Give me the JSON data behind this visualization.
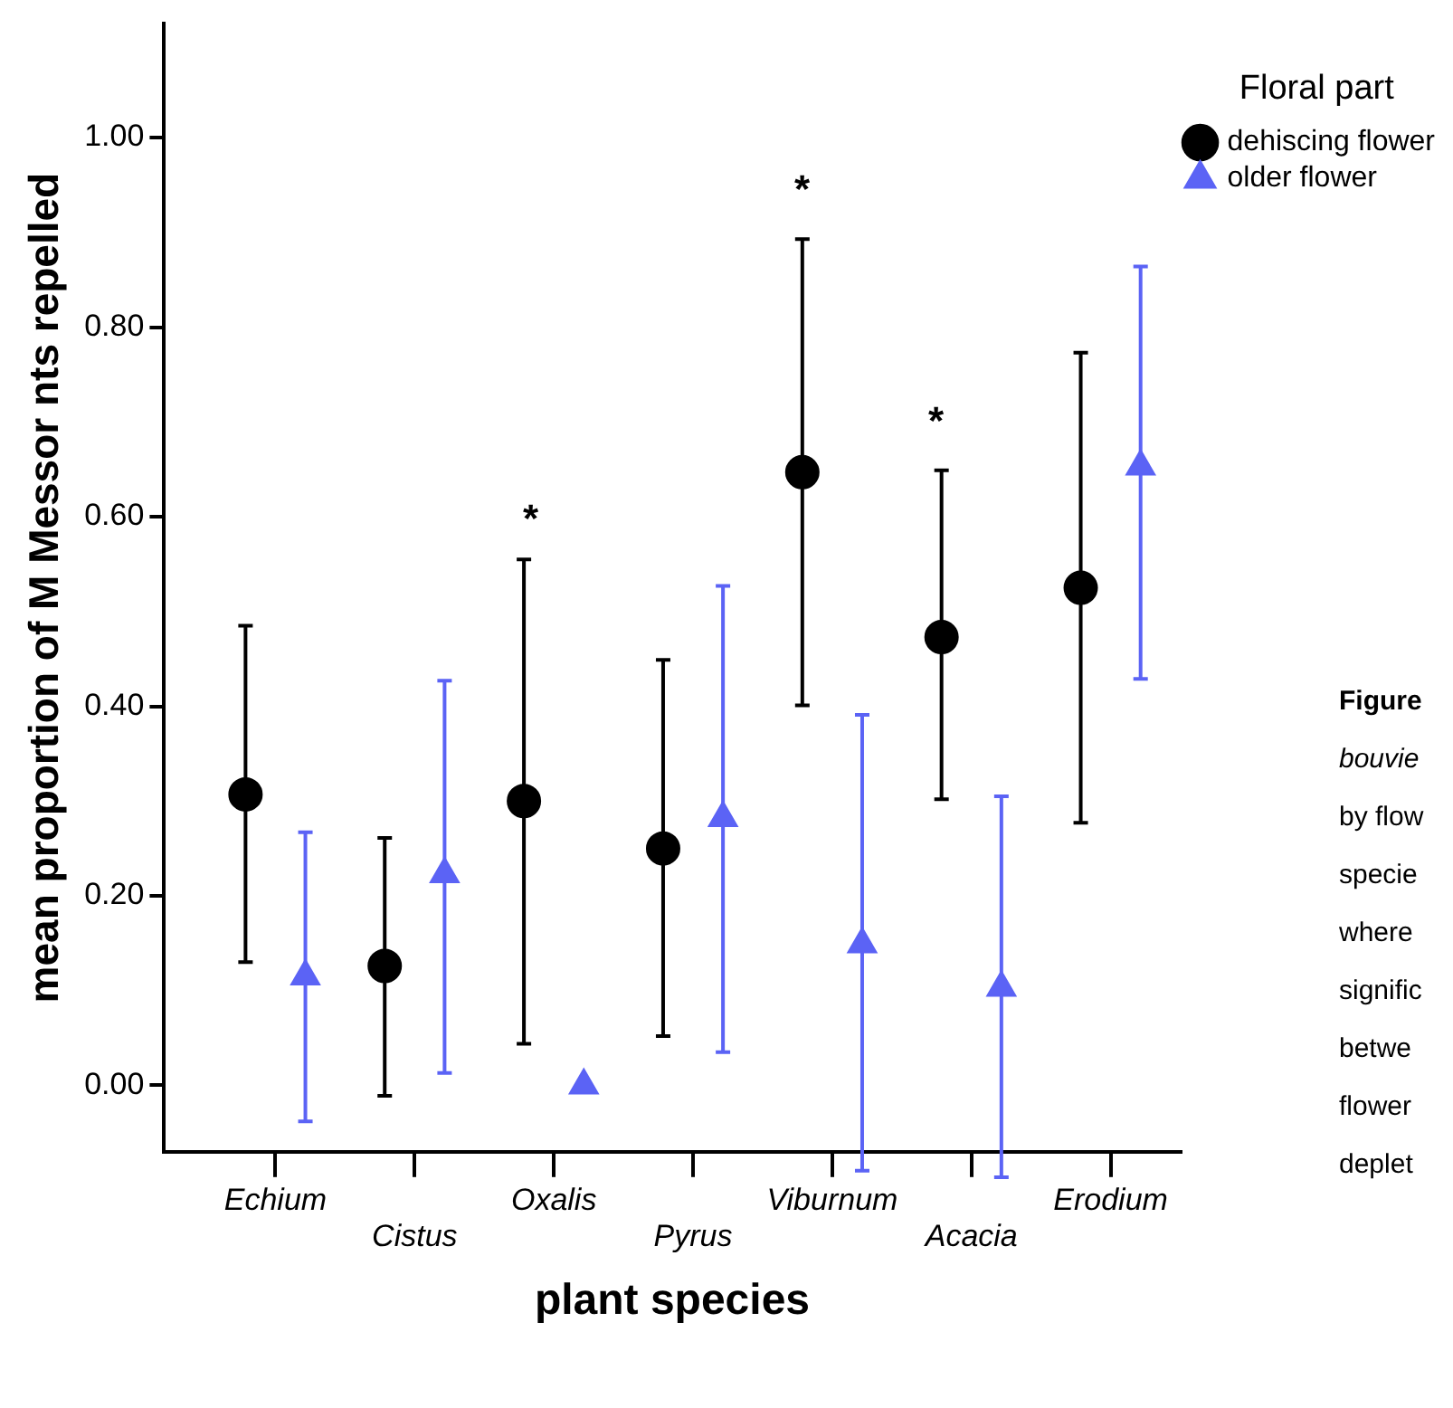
{
  "chart_data": {
    "type": "scatter",
    "xlabel": "plant species",
    "ylabel": "mean proportion of M Messor nts repelled",
    "legend_title": "Floral part",
    "legend": "top right",
    "grid": false,
    "categories": [
      "Echium",
      "Cistus",
      "Oxalis",
      "Pyrus",
      "Viburnum",
      "Acacia",
      "Erodium"
    ],
    "ylim": [
      -0.07,
      1.12
    ],
    "yticks": [
      {
        "value": 0,
        "label": "0.00"
      },
      {
        "value": 0.2,
        "label": "0.20"
      },
      {
        "value": 0.4,
        "label": "0.40"
      },
      {
        "value": 0.6,
        "label": "0.60"
      },
      {
        "value": 0.8,
        "label": "0.80"
      },
      {
        "value": 1,
        "label": "1.00"
      }
    ],
    "series": [
      {
        "name": "dehiscing flower",
        "color": "#000000",
        "marker": "circle",
        "values": [
          0.307,
          0.126,
          0.3,
          0.25,
          0.647,
          0.473,
          0.525
        ],
        "errors": [
          [
            0.13,
            0.485
          ],
          [
            -0.011,
            0.261
          ],
          [
            0.044,
            0.555
          ],
          [
            0.052,
            0.449
          ],
          [
            0.401,
            0.893
          ],
          [
            0.302,
            0.649
          ],
          [
            0.277,
            0.773
          ]
        ]
      },
      {
        "name": "older flower",
        "color": "#5b63f5",
        "marker": "triangle",
        "values": [
          0.115,
          0.223,
          0.0,
          0.282,
          0.149,
          0.103,
          0.653
        ],
        "errors": [
          [
            -0.038,
            0.267
          ],
          [
            0.013,
            0.427
          ],
          null,
          [
            0.035,
            0.527
          ],
          [
            -0.09,
            0.391
          ],
          [
            -0.097,
            0.305
          ],
          [
            0.429,
            0.864
          ]
        ]
      }
    ],
    "annotations": [
      "*",
      "*",
      "*",
      "Figure",
      "bouvie",
      "by flow",
      "specie",
      "where",
      "signific",
      "betwe",
      "flower",
      "deplet"
    ]
  }
}
